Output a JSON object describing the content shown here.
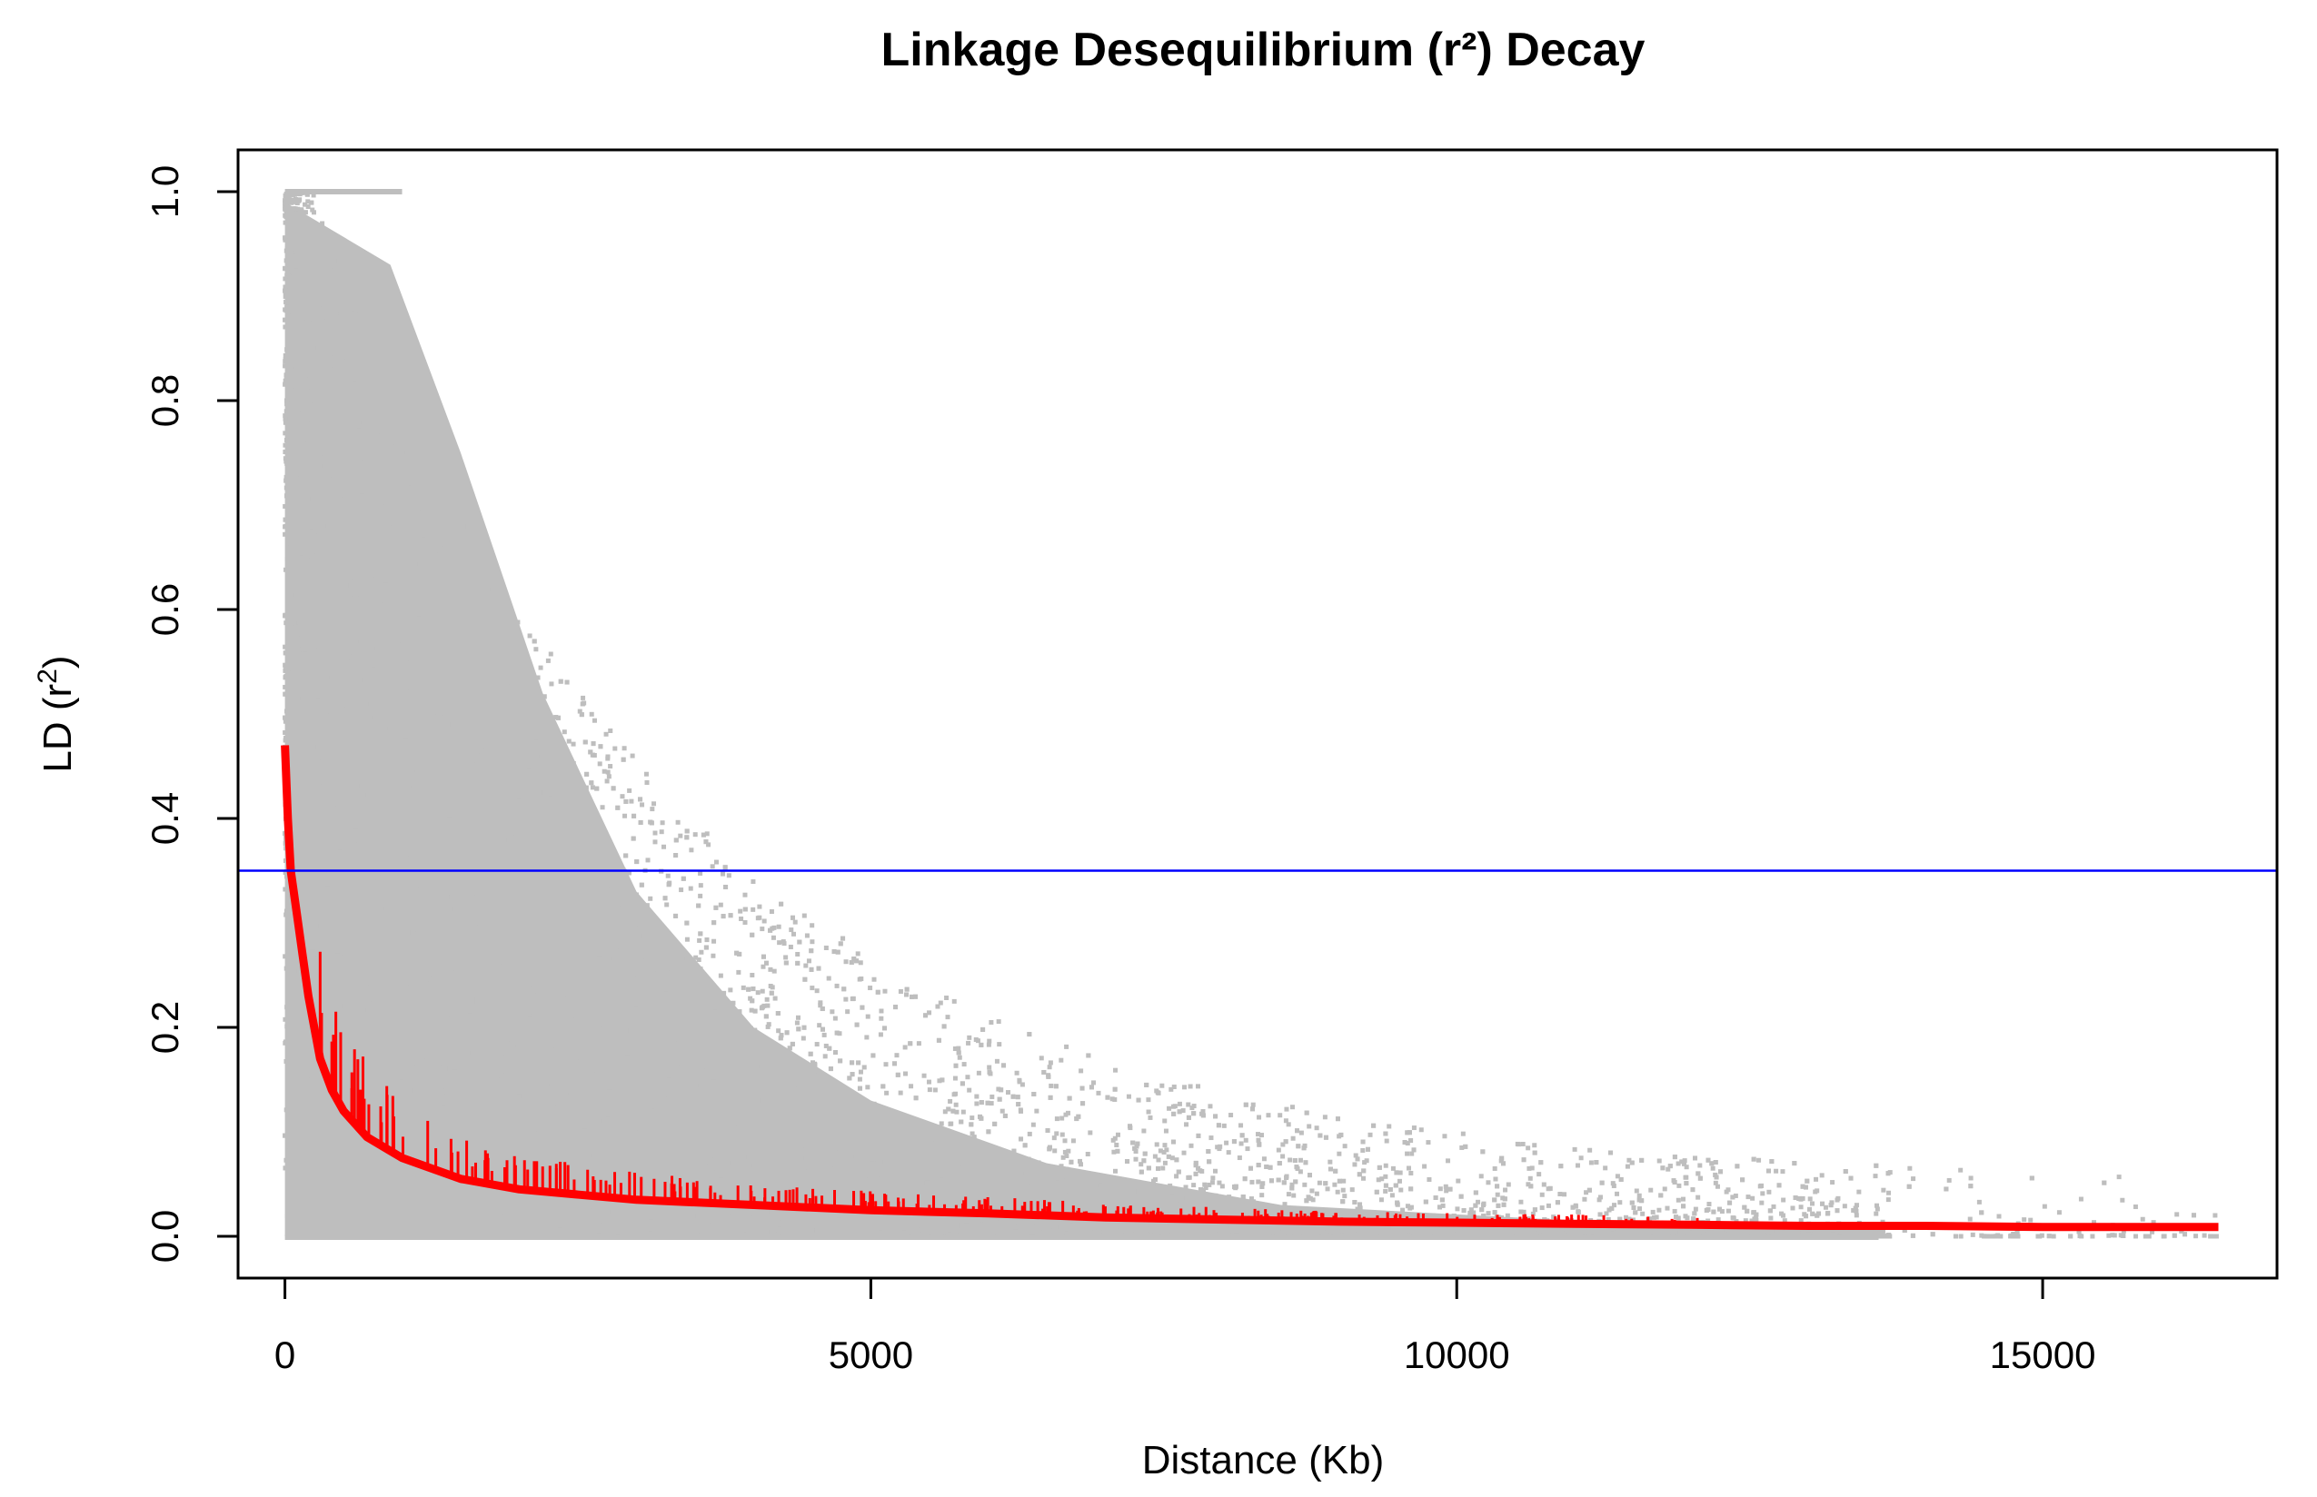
{
  "chart_data": {
    "type": "scatter",
    "title": "Linkage Desequilibrium (r²) Decay",
    "xlabel": "Distance (Kb)",
    "ylabel_main": "LD (r",
    "ylabel_sup": "2",
    "ylabel_close": ")",
    "xlim": [
      -400,
      17000
    ],
    "ylim": [
      -0.04,
      1.04
    ],
    "x_ticks": [
      {
        "value": 0,
        "label": "0"
      },
      {
        "value": 5000,
        "label": "5000"
      },
      {
        "value": 10000,
        "label": "10000"
      },
      {
        "value": 15000,
        "label": "15000"
      }
    ],
    "y_ticks": [
      {
        "value": 0.0,
        "label": "0.0"
      },
      {
        "value": 0.2,
        "label": "0.2"
      },
      {
        "value": 0.4,
        "label": "0.4"
      },
      {
        "value": 0.6,
        "label": "0.6"
      },
      {
        "value": 0.8,
        "label": "0.8"
      },
      {
        "value": 1.0,
        "label": "1.0"
      }
    ],
    "grid": false,
    "legend": "none",
    "colors": {
      "points": "#bebebe",
      "decay_curve": "#ff0000",
      "threshold_line": "#0000ff",
      "axes": "#000000"
    },
    "scatter_points": {
      "x_range": [
        0,
        16500
      ],
      "y_range": [
        0,
        1.0
      ],
      "description_of_density": "dense near x=0, thinning with distance"
    },
    "threshold": {
      "y": 0.35
    },
    "decay_curve": {
      "x": [
        0,
        25,
        50,
        100,
        150,
        200,
        300,
        400,
        500,
        700,
        1000,
        1500,
        2000,
        3000,
        4000,
        5000,
        6000,
        7000,
        8000,
        9000,
        10000,
        11000,
        12000,
        13000,
        14000,
        15000,
        16500
      ],
      "y": [
        0.47,
        0.4,
        0.35,
        0.31,
        0.27,
        0.23,
        0.17,
        0.14,
        0.12,
        0.095,
        0.075,
        0.055,
        0.045,
        0.035,
        0.03,
        0.025,
        0.022,
        0.018,
        0.016,
        0.014,
        0.013,
        0.012,
        0.011,
        0.01,
        0.01,
        0.009,
        0.009
      ]
    }
  }
}
